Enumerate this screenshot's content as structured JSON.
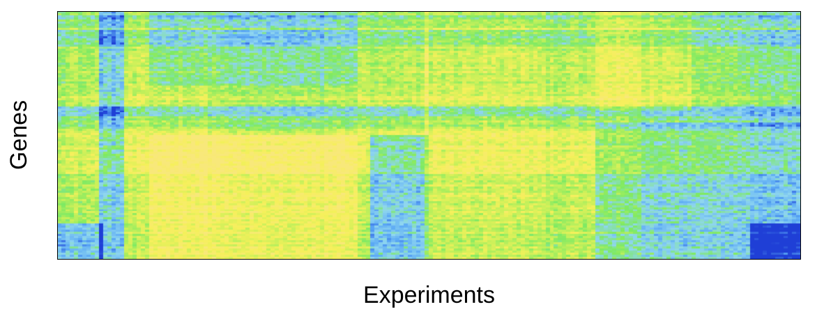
{
  "chart_data": {
    "type": "heatmap",
    "title": "",
    "xlabel": "Experiments",
    "ylabel": "Genes",
    "n_columns": 178,
    "n_rows": 120,
    "colormap": [
      "#1f3fd6",
      "#5aa8f5",
      "#8fd6f0",
      "#7eea63",
      "#c6f05a",
      "#f6f05a",
      "#f8e87a"
    ],
    "x_ticks": [],
    "y_ticks": [],
    "column_blocks": [
      {
        "start": 0,
        "end": 10,
        "dominant": "mixed yellow/blue"
      },
      {
        "start": 10,
        "end": 16,
        "dominant": "blue"
      },
      {
        "start": 16,
        "end": 40,
        "dominant": "yellow/green"
      },
      {
        "start": 40,
        "end": 64,
        "dominant": "green"
      },
      {
        "start": 64,
        "end": 75,
        "dominant": "yellow/blue"
      },
      {
        "start": 75,
        "end": 88,
        "dominant": "blue/green"
      },
      {
        "start": 88,
        "end": 115,
        "dominant": "yellow/green"
      },
      {
        "start": 115,
        "end": 140,
        "dominant": "yellow/blue"
      },
      {
        "start": 140,
        "end": 165,
        "dominant": "blue/green"
      },
      {
        "start": 165,
        "end": 178,
        "dominant": "blue"
      }
    ],
    "row_blocks": [
      {
        "start": 0,
        "end": 30,
        "upper_left": "blue/green"
      },
      {
        "start": 30,
        "end": 55,
        "upper_left": "green"
      },
      {
        "start": 55,
        "end": 95,
        "upper_left": "yellow"
      },
      {
        "start": 95,
        "end": 120,
        "upper_left": "yellow"
      }
    ]
  }
}
